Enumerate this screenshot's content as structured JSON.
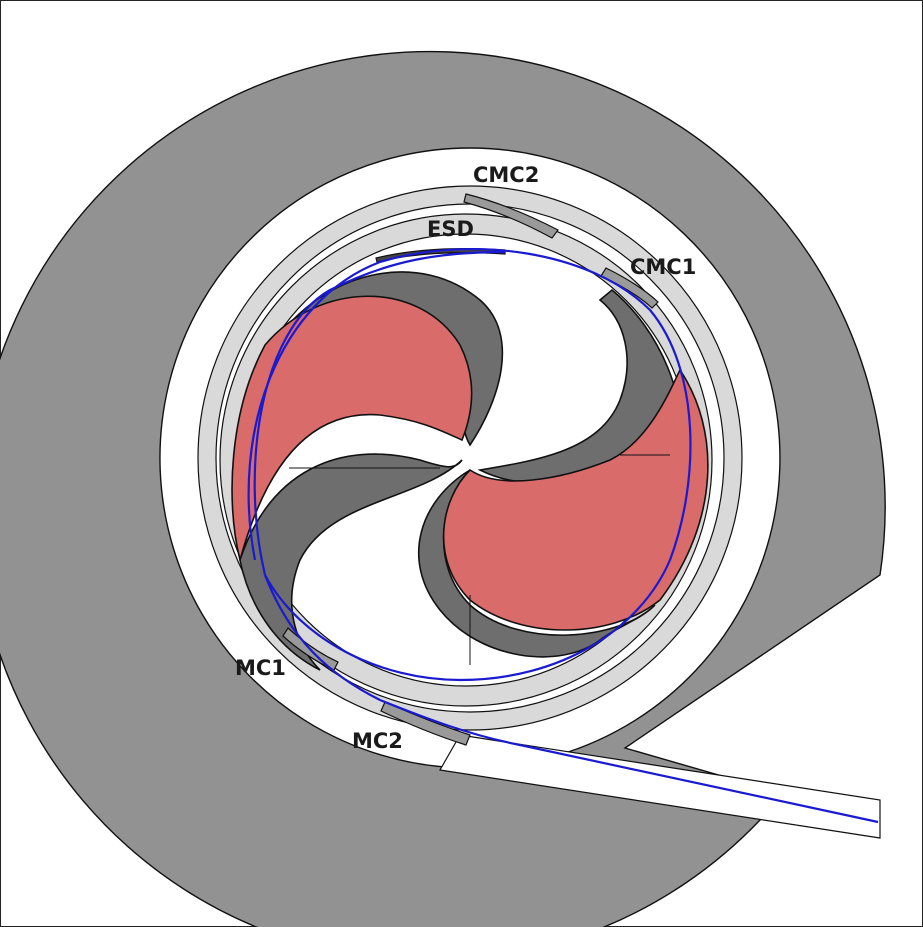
{
  "labels": {
    "cmc2": "CMC2",
    "esd": "ESD",
    "cmc1": "CMC1",
    "mc1": "MC1",
    "mc2": "MC2"
  },
  "colors": {
    "background": "#ffffff",
    "yoke": "#929292",
    "outline": "#111111",
    "light_ring": "#d9d9d9",
    "magnet_pink": "#d96b6b",
    "magnet_dark": "#6e6e6e",
    "deflector": "#9a9a9a",
    "trajectory": "#1a1ad0"
  }
}
